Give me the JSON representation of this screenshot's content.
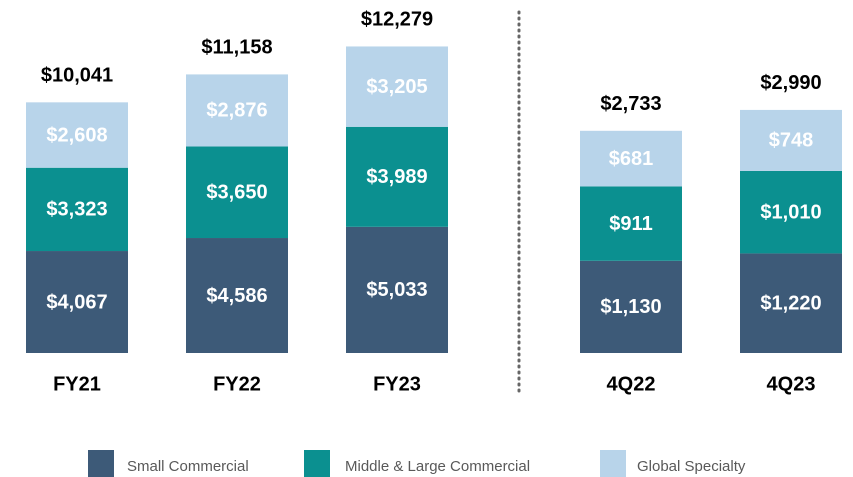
{
  "chart_data": {
    "type": "bar",
    "stacked": true,
    "series": [
      {
        "name": "Small Commercial",
        "color": "#3d5a78"
      },
      {
        "name": "Middle & Large Commercial",
        "color": "#0b9090"
      },
      {
        "name": "Global Specialty",
        "color": "#b8d4ea"
      }
    ],
    "panels": [
      {
        "categories": [
          "FY21",
          "FY22",
          "FY23"
        ],
        "ylim": [
          0,
          14000
        ],
        "series_values": [
          [
            4067,
            4586,
            5033
          ],
          [
            3323,
            3650,
            3989
          ],
          [
            2608,
            2876,
            3205
          ]
        ],
        "value_labels": [
          [
            "$4,067",
            "$4,586",
            "$5,033"
          ],
          [
            "$3,323",
            "$3,650",
            "$3,989"
          ],
          [
            "$2,608",
            "$2,876",
            "$3,205"
          ]
        ],
        "totals": [
          10041,
          11158,
          12279
        ],
        "total_labels": [
          "$10,041",
          "$11,158",
          "$12,279"
        ]
      },
      {
        "categories": [
          "4Q22",
          "4Q23"
        ],
        "ylim": [
          0,
          4300
        ],
        "series_values": [
          [
            1130,
            1220
          ],
          [
            911,
            1010
          ],
          [
            681,
            748
          ]
        ],
        "value_labels": [
          [
            "$1,130",
            "$1,220"
          ],
          [
            "$911",
            "$1,010"
          ],
          [
            "$681",
            "$748"
          ]
        ],
        "totals": [
          2733,
          2990
        ],
        "total_labels": [
          "$2,733",
          "$2,990"
        ]
      }
    ]
  }
}
